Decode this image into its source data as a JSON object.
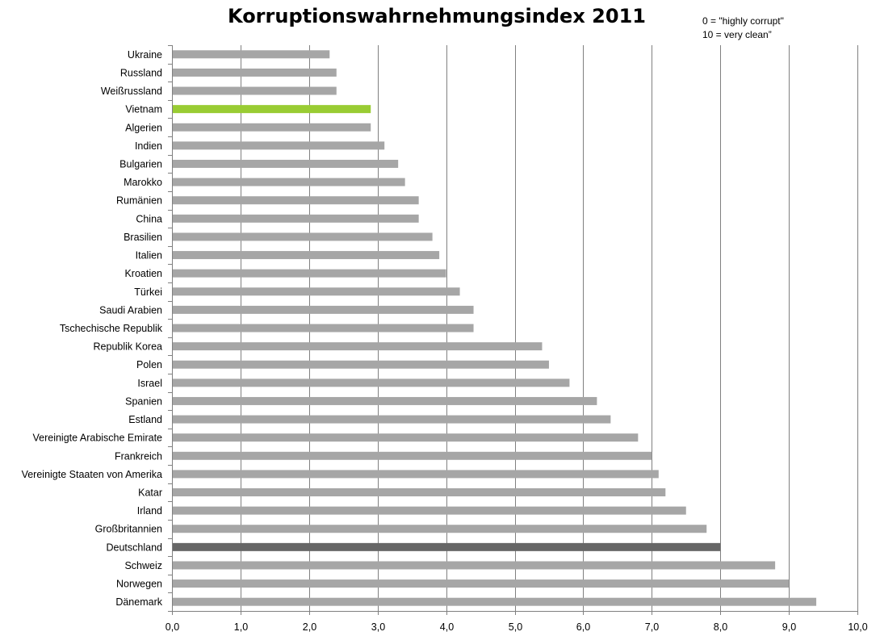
{
  "chart_data": {
    "type": "bar",
    "orientation": "horizontal",
    "title": "Korruptionswahrnehmungsindex 2011",
    "annotations": [
      "0 = \"highly corrupt\"",
      "10 = very clean”"
    ],
    "categories": [
      "Ukraine",
      "Russland",
      "Weißrussland",
      "Vietnam",
      "Algerien",
      "Indien",
      "Bulgarien",
      "Marokko",
      "Rumänien",
      "China",
      "Brasilien",
      "Italien",
      "Kroatien",
      "Türkei",
      "Saudi Arabien",
      "Tschechische Republik",
      "Republik Korea",
      "Polen",
      "Israel",
      "Spanien",
      "Estland",
      "Vereinigte Arabische Emirate",
      "Frankreich",
      "Vereinigte Staaten von Amerika",
      "Katar",
      "Irland",
      "Großbritannien",
      "Deutschland",
      "Schweiz",
      "Norwegen",
      "Dänemark"
    ],
    "values": [
      2.3,
      2.4,
      2.4,
      2.9,
      2.9,
      3.1,
      3.3,
      3.4,
      3.6,
      3.6,
      3.8,
      3.9,
      4.0,
      4.2,
      4.4,
      4.4,
      5.4,
      5.5,
      5.8,
      6.2,
      6.4,
      6.8,
      7.0,
      7.1,
      7.2,
      7.5,
      7.8,
      8.0,
      8.8,
      9.0,
      9.4
    ],
    "highlight": {
      "Vietnam": "#99cc33",
      "Deutschland": "#666666"
    },
    "bar_color": "#a6a6a6",
    "xlim": [
      0,
      10
    ],
    "xticks": [
      "0,0",
      "1,0",
      "2,0",
      "3,0",
      "4,0",
      "5,0",
      "6,0",
      "7,0",
      "8,0",
      "9,0",
      "10,0"
    ],
    "grid": true
  }
}
